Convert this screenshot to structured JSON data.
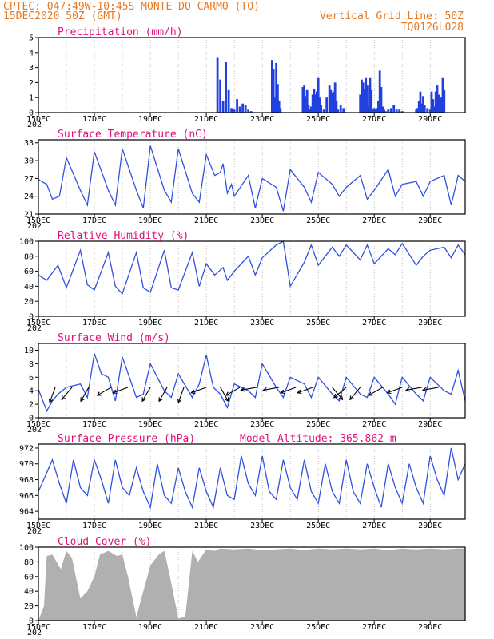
{
  "header": {
    "line1": "CPTEC:  047:49W-10:45S  MONTE DO CARMO (TO)",
    "line2": "15DEC2020 50Z (GMT)",
    "grid_note": "Vertical Grid Line: 50Z",
    "code": "TQ0126L028"
  },
  "x_labels": [
    "15DEC",
    "17DEC",
    "19DEC",
    "21DEC",
    "23DEC",
    "25DEC",
    "27DEC",
    "29DEC"
  ],
  "year_fragment": "202",
  "colors": {
    "line": "#3050e0",
    "bar": "#2040e0",
    "cloud": "#b0b0b0",
    "title": "#e0107a",
    "header": "#e87820"
  },
  "chart_data": [
    {
      "id": "precip",
      "type": "bar",
      "title": "Precipitation (mm/h)",
      "ylim": [
        0,
        5
      ],
      "yticks": [
        0,
        1,
        2,
        3,
        4,
        5
      ],
      "x": [
        6.4,
        6.5,
        6.6,
        6.7,
        6.8,
        6.9,
        7.0,
        7.1,
        7.2,
        7.3,
        7.4,
        7.5,
        7.6,
        8.35,
        8.4,
        8.45,
        8.5,
        8.55,
        8.6,
        8.65,
        9.45,
        9.5,
        9.55,
        9.6,
        9.65,
        9.7,
        9.75,
        9.8,
        9.85,
        9.9,
        9.95,
        10.0,
        10.05,
        10.1,
        10.2,
        10.3,
        10.4,
        10.45,
        10.5,
        10.55,
        10.6,
        10.65,
        10.7,
        10.8,
        10.9,
        11.5,
        11.55,
        11.6,
        11.65,
        11.7,
        11.75,
        11.8,
        11.85,
        11.9,
        11.95,
        12.0,
        12.05,
        12.1,
        12.15,
        12.2,
        12.25,
        12.3,
        12.35,
        12.4,
        12.5,
        12.6,
        12.7,
        12.8,
        12.9,
        13.0,
        13.5,
        13.55,
        13.6,
        13.65,
        13.7,
        13.75,
        13.8,
        13.9,
        14.0,
        14.05,
        14.1,
        14.15,
        14.2,
        14.25,
        14.3,
        14.35,
        14.4,
        14.45,
        14.5
      ],
      "values": [
        3.7,
        2.2,
        0.8,
        3.4,
        1.5,
        0.3,
        0.2,
        0.9,
        0.4,
        0.6,
        0.5,
        0.2,
        0.1,
        3.5,
        2.9,
        1.0,
        3.3,
        1.9,
        0.8,
        0.3,
        1.7,
        1.8,
        1.1,
        1.5,
        0.5,
        0.2,
        0.4,
        1.2,
        1.6,
        1.2,
        1.4,
        2.3,
        1.0,
        0.5,
        0.2,
        1.0,
        1.8,
        1.5,
        1.3,
        1.4,
        2.0,
        0.8,
        0.2,
        0.5,
        0.3,
        1.2,
        2.2,
        2.0,
        1.6,
        2.3,
        1.8,
        0.4,
        2.3,
        1.5,
        0.2,
        0.3,
        0.2,
        0.3,
        0.8,
        2.8,
        1.7,
        0.4,
        0.2,
        0.1,
        0.2,
        0.3,
        0.5,
        0.2,
        0.2,
        0.1,
        0.2,
        0.3,
        0.8,
        1.4,
        0.6,
        1.1,
        0.5,
        0.3,
        0.2,
        1.4,
        0.9,
        0.4,
        1.4,
        1.8,
        1.2,
        0.5,
        1.0,
        2.3,
        1.5
      ]
    },
    {
      "id": "temp",
      "type": "line",
      "title": "Surface Temperature (nC)",
      "ylim": [
        21,
        33.5
      ],
      "yticks": [
        21,
        24,
        27,
        30,
        33
      ],
      "x": [
        0,
        0.3,
        0.5,
        0.75,
        1.0,
        1.5,
        1.75,
        2.0,
        2.5,
        2.75,
        3.0,
        3.5,
        3.75,
        4.0,
        4.5,
        4.75,
        5.0,
        5.5,
        5.75,
        6.0,
        6.3,
        6.5,
        6.6,
        6.75,
        6.9,
        7.0,
        7.5,
        7.75,
        8.0,
        8.5,
        8.75,
        9.0,
        9.5,
        9.75,
        10.0,
        10.5,
        10.75,
        11.0,
        11.5,
        11.75,
        12.0,
        12.5,
        12.75,
        13.0,
        13.5,
        13.75,
        14.0,
        14.5,
        14.75,
        15.0,
        15.25
      ],
      "values": [
        26.8,
        26,
        23.5,
        24,
        30.5,
        25,
        22.5,
        31.5,
        25,
        22.5,
        32,
        25,
        22,
        32.5,
        25,
        23,
        32,
        24.5,
        23,
        31,
        27.5,
        28,
        29.5,
        24.5,
        26,
        24,
        27.5,
        22,
        27,
        25.5,
        21.5,
        28.5,
        25.5,
        23,
        28,
        26,
        24,
        25.5,
        27.5,
        23.5,
        25,
        28.5,
        24,
        26,
        26.5,
        24,
        26.5,
        27.5,
        22.5,
        27.5,
        26.5
      ]
    },
    {
      "id": "rh",
      "type": "line",
      "title": "Relative Humidity (%)",
      "ylim": [
        0,
        100
      ],
      "yticks": [
        0,
        20,
        40,
        60,
        80,
        100
      ],
      "x": [
        0,
        0.3,
        0.7,
        1.0,
        1.5,
        1.75,
        2.0,
        2.5,
        2.75,
        3.0,
        3.5,
        3.75,
        4.0,
        4.5,
        4.75,
        5.0,
        5.5,
        5.75,
        6.0,
        6.3,
        6.6,
        6.75,
        7.0,
        7.5,
        7.75,
        8.0,
        8.5,
        8.75,
        9.0,
        9.5,
        9.75,
        10.0,
        10.5,
        10.75,
        11.0,
        11.5,
        11.75,
        12.0,
        12.5,
        12.75,
        13.0,
        13.5,
        13.75,
        14.0,
        14.5,
        14.75,
        15.0,
        15.25
      ],
      "values": [
        55,
        48,
        68,
        38,
        88,
        42,
        35,
        85,
        40,
        30,
        85,
        38,
        32,
        88,
        38,
        35,
        85,
        40,
        70,
        55,
        65,
        48,
        60,
        80,
        55,
        78,
        95,
        100,
        40,
        72,
        95,
        68,
        92,
        80,
        95,
        75,
        95,
        70,
        90,
        82,
        97,
        68,
        80,
        88,
        92,
        78,
        95,
        82
      ]
    },
    {
      "id": "wind",
      "type": "line",
      "title": "Surface Wind (m/s)",
      "ylim": [
        0,
        11
      ],
      "yticks": [
        0,
        2,
        4,
        6,
        8,
        10
      ],
      "x": [
        0,
        0.3,
        0.5,
        0.7,
        1.0,
        1.5,
        1.75,
        2.0,
        2.25,
        2.5,
        2.75,
        3.0,
        3.5,
        3.75,
        4.0,
        4.5,
        4.75,
        5.0,
        5.5,
        5.75,
        6.0,
        6.25,
        6.5,
        6.75,
        7.0,
        7.5,
        7.75,
        8.0,
        8.5,
        8.75,
        9.0,
        9.5,
        9.75,
        10.0,
        10.5,
        10.75,
        11.0,
        11.5,
        11.75,
        12.0,
        12.5,
        12.75,
        13.0,
        13.5,
        13.75,
        14.0,
        14.5,
        14.75,
        15.0,
        15.25
      ],
      "values": [
        4.2,
        1.0,
        2.5,
        3.5,
        4.5,
        5.0,
        3.0,
        9.5,
        6.5,
        6.0,
        2.5,
        9.0,
        3.0,
        3.5,
        8.0,
        4.0,
        3.0,
        6.5,
        3.0,
        5.0,
        9.3,
        4.5,
        3.5,
        1.5,
        5.0,
        4.0,
        3.0,
        8.0,
        4.5,
        3.0,
        6.0,
        5.0,
        3.0,
        6.0,
        3.5,
        2.5,
        6.0,
        3.5,
        3.0,
        6.0,
        3.5,
        2.0,
        6.0,
        3.5,
        2.5,
        6.0,
        4.0,
        3.5,
        7.0,
        2.5
      ],
      "arrows": [
        {
          "x": 0.6,
          "dir": 20
        },
        {
          "x": 1.2,
          "dir": 40
        },
        {
          "x": 1.8,
          "dir": 30
        },
        {
          "x": 2.6,
          "dir": 60
        },
        {
          "x": 3.2,
          "dir": 70
        },
        {
          "x": 4.0,
          "dir": 30
        },
        {
          "x": 4.6,
          "dir": 30
        },
        {
          "x": 5.2,
          "dir": 20
        },
        {
          "x": 6.0,
          "dir": 70
        },
        {
          "x": 6.5,
          "dir": 330
        },
        {
          "x": 7.2,
          "dir": 60
        },
        {
          "x": 7.8,
          "dir": 80
        },
        {
          "x": 8.6,
          "dir": 80
        },
        {
          "x": 9.2,
          "dir": 70
        },
        {
          "x": 9.8,
          "dir": 70
        },
        {
          "x": 10.5,
          "dir": 320
        },
        {
          "x": 11.0,
          "dir": 50
        },
        {
          "x": 11.5,
          "dir": 40
        },
        {
          "x": 12.3,
          "dir": 60
        },
        {
          "x": 13.0,
          "dir": 70
        },
        {
          "x": 13.7,
          "dir": 80
        },
        {
          "x": 14.3,
          "dir": 80
        }
      ]
    },
    {
      "id": "pres",
      "type": "line",
      "title": "Surface Pressure (hPa)",
      "extra": "Model Altitude: 365.862 m",
      "ylim": [
        963,
        972.5
      ],
      "yticks": [
        964,
        966,
        968,
        970,
        972
      ],
      "x": [
        0,
        0.5,
        0.75,
        1.0,
        1.25,
        1.5,
        1.75,
        2.0,
        2.25,
        2.5,
        2.75,
        3.0,
        3.25,
        3.5,
        3.75,
        4.0,
        4.25,
        4.5,
        4.75,
        5.0,
        5.25,
        5.5,
        5.75,
        6.0,
        6.25,
        6.5,
        6.75,
        7.0,
        7.25,
        7.5,
        7.75,
        8.0,
        8.25,
        8.5,
        8.75,
        9.0,
        9.25,
        9.5,
        9.75,
        10.0,
        10.25,
        10.5,
        10.75,
        11.0,
        11.25,
        11.5,
        11.75,
        12.0,
        12.25,
        12.5,
        12.75,
        13.0,
        13.25,
        13.5,
        13.75,
        14.0,
        14.25,
        14.5,
        14.75,
        15.0,
        15.25
      ],
      "values": [
        966.5,
        970.5,
        967.5,
        965,
        970.5,
        967,
        966,
        970.5,
        968,
        965,
        970.5,
        967,
        966,
        969.5,
        966.5,
        964.5,
        970,
        966,
        965,
        969.5,
        966.5,
        964.5,
        969.5,
        966.5,
        964.5,
        969.5,
        966,
        965.5,
        971,
        967.5,
        966,
        971,
        966.5,
        965.5,
        970.5,
        967,
        965.5,
        970.5,
        966.5,
        965,
        970,
        966.5,
        965,
        970.5,
        966.5,
        965,
        970,
        967,
        964.5,
        970,
        967,
        965,
        970,
        967,
        965,
        971,
        968,
        966,
        972,
        968,
        970
      ]
    },
    {
      "id": "cloud",
      "type": "area",
      "title": "Cloud Cover (%)",
      "ylim": [
        0,
        100
      ],
      "yticks": [
        0,
        20,
        40,
        60,
        80,
        100
      ],
      "x": [
        0,
        0.2,
        0.3,
        0.5,
        0.8,
        1.0,
        1.2,
        1.5,
        1.75,
        2.0,
        2.2,
        2.5,
        2.8,
        3.0,
        3.2,
        3.5,
        3.75,
        4.0,
        4.3,
        4.5,
        4.7,
        5.0,
        5.25,
        5.5,
        5.7,
        6.0,
        6.3,
        6.5,
        7.0,
        7.5,
        8.0,
        8.5,
        9.0,
        9.5,
        10.0,
        10.5,
        11.0,
        11.5,
        12.0,
        12.5,
        13.0,
        13.5,
        14.0,
        14.5,
        15.0,
        15.25
      ],
      "values": [
        0,
        20,
        88,
        90,
        70,
        95,
        85,
        30,
        40,
        60,
        90,
        95,
        88,
        90,
        60,
        5,
        40,
        75,
        90,
        95,
        60,
        3,
        5,
        95,
        80,
        97,
        95,
        98,
        97,
        98,
        96,
        97,
        98,
        96,
        98,
        97,
        98,
        97,
        98,
        96,
        98,
        97,
        98,
        97,
        98,
        98
      ]
    }
  ]
}
